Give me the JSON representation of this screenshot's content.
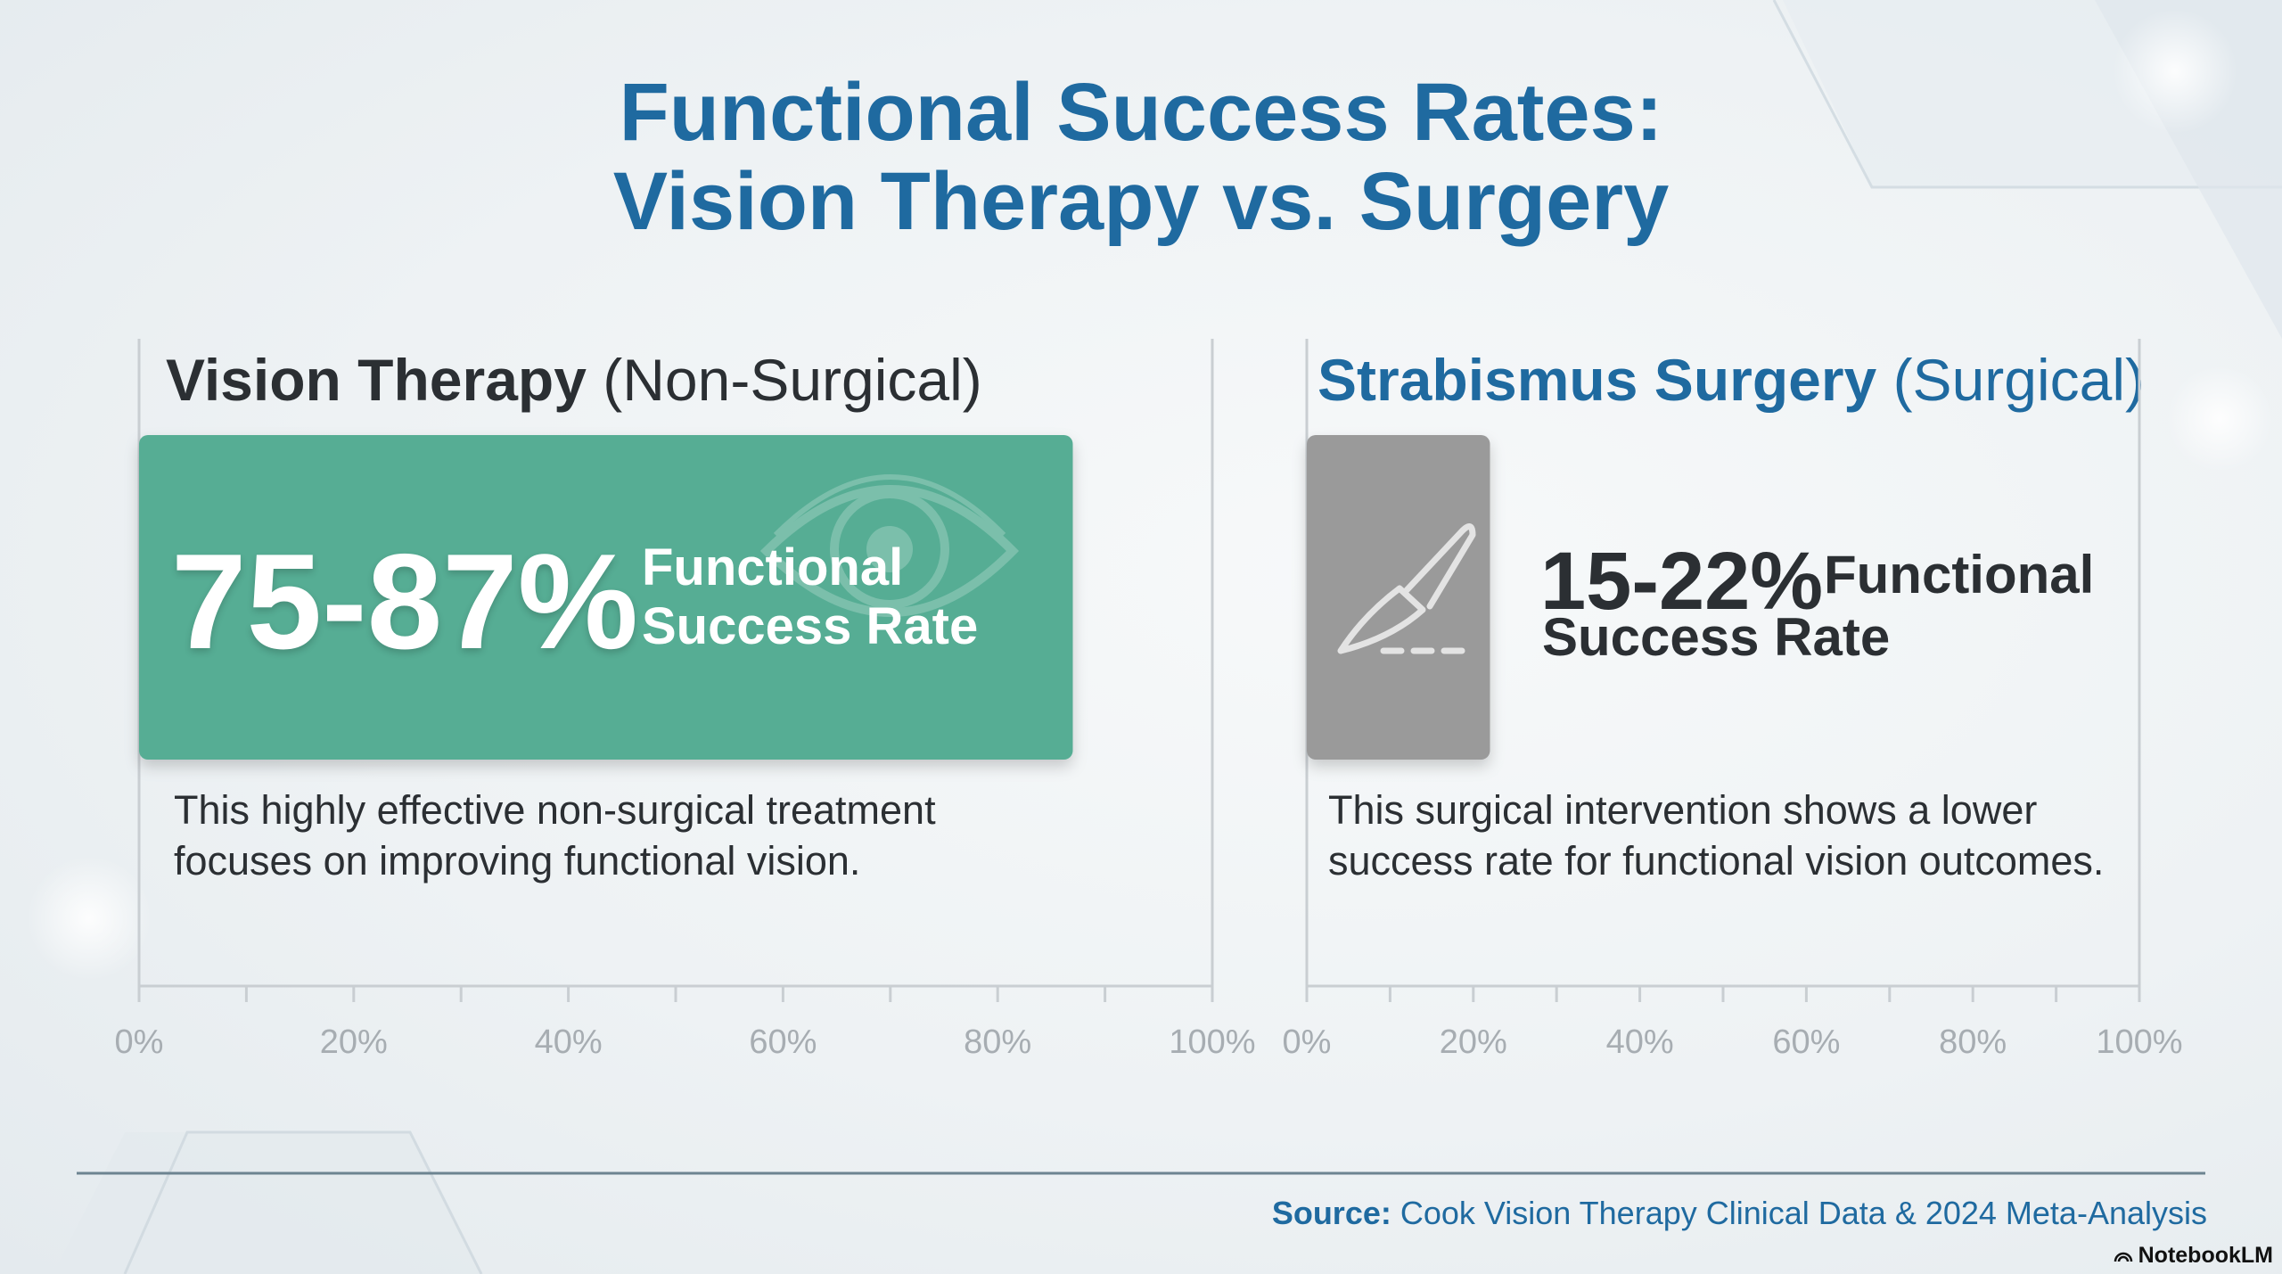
{
  "title": {
    "line1": "Functional Success Rates:",
    "line2": "Vision Therapy vs. Surgery"
  },
  "colors": {
    "title": "#1f6aa0",
    "therapy_bar": "#56ad94",
    "surgery_bar": "#9a9a9a",
    "text_dark": "#2b2f33",
    "axis": "#c9ced2"
  },
  "panels": {
    "therapy": {
      "heading_strong": "Vision Therapy",
      "heading_light": "(Non-Surgical)",
      "value_text": "75-87%",
      "caption_line1": "Functional",
      "caption_line2": "Success Rate",
      "description": "This highly effective non-surgical treatment focuses on improving functional vision.",
      "icon": "eye-icon"
    },
    "surgery": {
      "heading_strong": "Strabismus Surgery",
      "heading_light": "(Surgical)",
      "value_text": "15-22%",
      "caption_line1": "Functional",
      "caption_line2": "Success Rate",
      "description": "This surgical intervention shows a lower success rate for functional vision outcomes.",
      "icon": "scalpel-icon"
    }
  },
  "chart_data": [
    {
      "type": "bar",
      "orientation": "horizontal",
      "categories": [
        "Vision Therapy (Non-Surgical)"
      ],
      "values": [
        87
      ],
      "range": [
        75,
        87
      ],
      "xlim": [
        0,
        100
      ],
      "xticks": [
        "0%",
        "20%",
        "40%",
        "60%",
        "80%",
        "100%"
      ],
      "data_label": "75-87% Functional Success Rate"
    },
    {
      "type": "bar",
      "orientation": "horizontal",
      "categories": [
        "Strabismus Surgery (Surgical)"
      ],
      "values": [
        22
      ],
      "range": [
        15,
        22
      ],
      "xlim": [
        0,
        100
      ],
      "xticks": [
        "0%",
        "20%",
        "40%",
        "60%",
        "80%",
        "100%"
      ],
      "data_label": "15-22% Functional Success Rate"
    }
  ],
  "footer": {
    "source_label": "Source:",
    "source_text": "Cook Vision Therapy Clinical Data & 2024 Meta-Analysis",
    "brand": "NotebookLM"
  }
}
